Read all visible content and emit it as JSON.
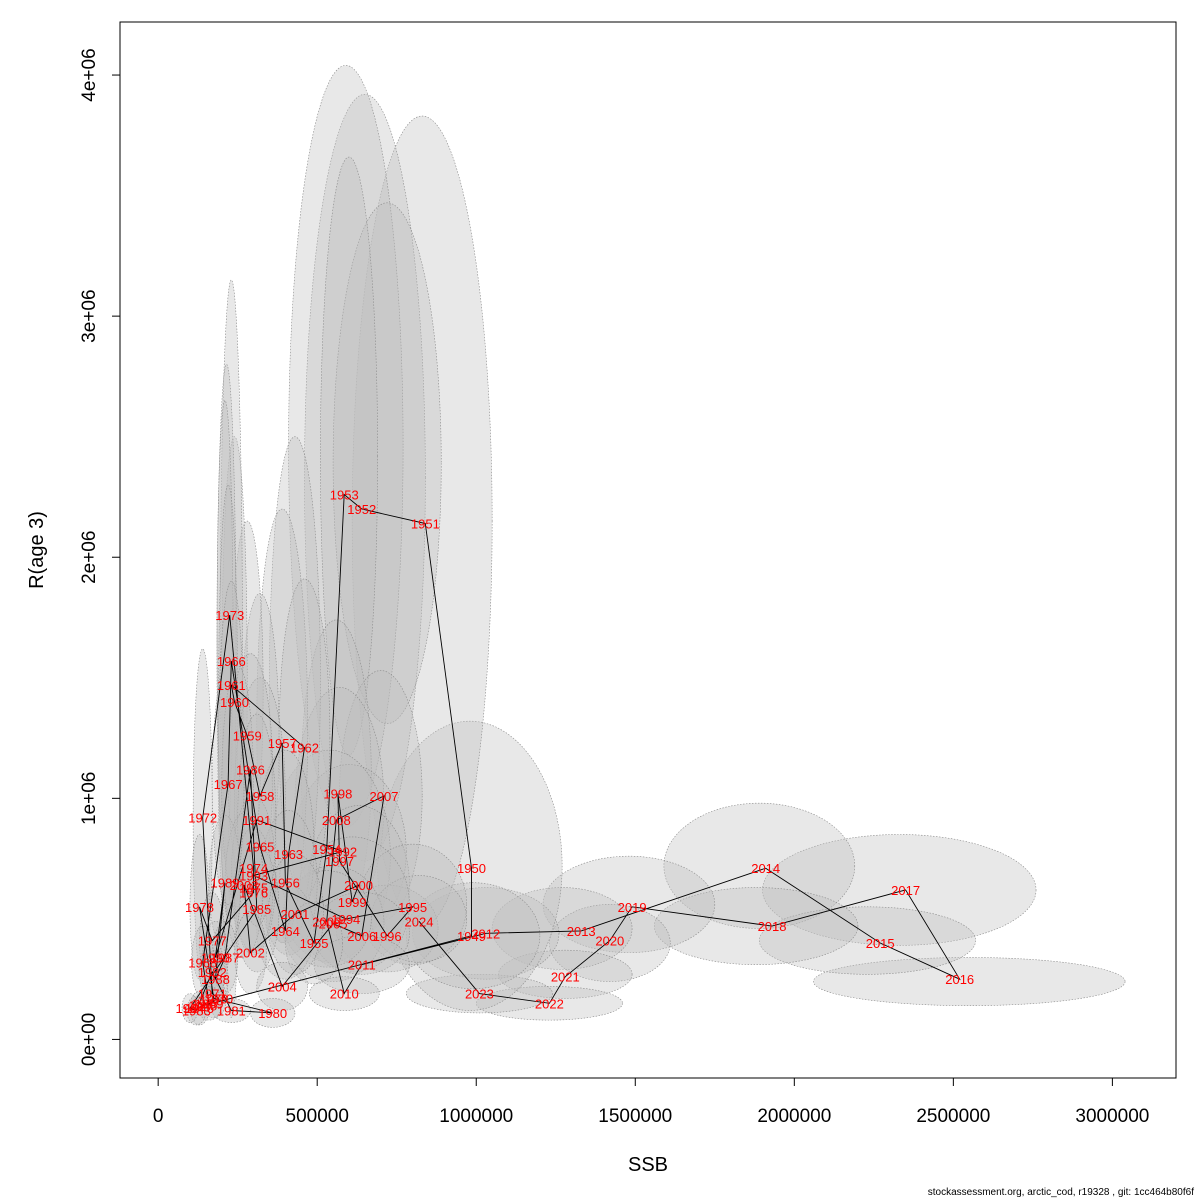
{
  "chart_data": {
    "type": "scatter",
    "xlabel": "SSB",
    "ylabel": "R(age 3)",
    "xlim": [
      -120000,
      3200000
    ],
    "ylim": [
      -160000,
      4220000
    ],
    "x_ticks": [
      0,
      500000,
      1000000,
      1500000,
      2000000,
      2500000,
      3000000
    ],
    "x_tick_labels": [
      "0",
      "500000",
      "1000000",
      "1500000",
      "2000000",
      "2500000",
      "3000000"
    ],
    "y_ticks": [
      0,
      1000000,
      2000000,
      3000000,
      4000000
    ],
    "y_tick_labels": [
      "0e+00",
      "1e+06",
      "2e+06",
      "3e+06",
      "4e+06"
    ],
    "grid": false,
    "point_color": "#ff0000",
    "ellipse_fill": "#bebebe",
    "line_color": "#000000",
    "points": [
      {
        "year": "1946",
        "ssb": 130000,
        "r": 130000
      },
      {
        "year": "1947",
        "ssb": 150000,
        "r": 150000
      },
      {
        "year": "1948",
        "ssb": 140000,
        "r": 140000
      },
      {
        "year": "1949",
        "ssb": 985000,
        "r": 430000
      },
      {
        "year": "1950",
        "ssb": 985000,
        "r": 710000
      },
      {
        "year": "1951",
        "ssb": 840000,
        "r": 2140000
      },
      {
        "year": "1952",
        "ssb": 640000,
        "r": 2200000
      },
      {
        "year": "1953",
        "ssb": 585000,
        "r": 2260000
      },
      {
        "year": "1954",
        "ssb": 530000,
        "r": 790000
      },
      {
        "year": "1955",
        "ssb": 490000,
        "r": 400000
      },
      {
        "year": "1956",
        "ssb": 400000,
        "r": 650000
      },
      {
        "year": "1957",
        "ssb": 390000,
        "r": 1230000
      },
      {
        "year": "1958",
        "ssb": 320000,
        "r": 1010000
      },
      {
        "year": "1959",
        "ssb": 280000,
        "r": 1260000
      },
      {
        "year": "1960",
        "ssb": 240000,
        "r": 1400000
      },
      {
        "year": "1961",
        "ssb": 230000,
        "r": 1470000
      },
      {
        "year": "1962",
        "ssb": 460000,
        "r": 1210000
      },
      {
        "year": "1963",
        "ssb": 410000,
        "r": 770000
      },
      {
        "year": "1964",
        "ssb": 400000,
        "r": 450000
      },
      {
        "year": "1965",
        "ssb": 320000,
        "r": 800000
      },
      {
        "year": "1966",
        "ssb": 230000,
        "r": 1570000
      },
      {
        "year": "1967",
        "ssb": 220000,
        "r": 1060000
      },
      {
        "year": "1968",
        "ssb": 140000,
        "r": 320000
      },
      {
        "year": "1969",
        "ssb": 160000,
        "r": 150000
      },
      {
        "year": "1970",
        "ssb": 190000,
        "r": 170000
      },
      {
        "year": "1971",
        "ssb": 170000,
        "r": 190000
      },
      {
        "year": "1972",
        "ssb": 140000,
        "r": 920000
      },
      {
        "year": "1973",
        "ssb": 225000,
        "r": 1760000
      },
      {
        "year": "1974",
        "ssb": 300000,
        "r": 710000
      },
      {
        "year": "1975",
        "ssb": 300000,
        "r": 630000
      },
      {
        "year": "1976",
        "ssb": 300000,
        "r": 610000
      },
      {
        "year": "1977",
        "ssb": 170000,
        "r": 410000
      },
      {
        "year": "1978",
        "ssb": 130000,
        "r": 550000
      },
      {
        "year": "1979",
        "ssb": 175000,
        "r": 170000
      },
      {
        "year": "1980",
        "ssb": 360000,
        "r": 110000
      },
      {
        "year": "1981",
        "ssb": 230000,
        "r": 120000
      },
      {
        "year": "1982",
        "ssb": 170000,
        "r": 280000
      },
      {
        "year": "1983",
        "ssb": 120000,
        "r": 120000
      },
      {
        "year": "1984",
        "ssb": 100000,
        "r": 130000
      },
      {
        "year": "1985",
        "ssb": 310000,
        "r": 540000
      },
      {
        "year": "1986",
        "ssb": 290000,
        "r": 1120000
      },
      {
        "year": "1987",
        "ssb": 210000,
        "r": 340000
      },
      {
        "year": "1988",
        "ssb": 180000,
        "r": 250000
      },
      {
        "year": "1989",
        "ssb": 210000,
        "r": 650000
      },
      {
        "year": "1990",
        "ssb": 180000,
        "r": 340000
      },
      {
        "year": "1991",
        "ssb": 310000,
        "r": 910000
      },
      {
        "year": "1992",
        "ssb": 580000,
        "r": 780000
      },
      {
        "year": "1993",
        "ssb": 300000,
        "r": 680000
      },
      {
        "year": "1994",
        "ssb": 590000,
        "r": 500000
      },
      {
        "year": "1995",
        "ssb": 800000,
        "r": 550000
      },
      {
        "year": "1996",
        "ssb": 720000,
        "r": 430000
      },
      {
        "year": "1997",
        "ssb": 570000,
        "r": 740000
      },
      {
        "year": "1998",
        "ssb": 565000,
        "r": 1020000
      },
      {
        "year": "1999",
        "ssb": 610000,
        "r": 570000
      },
      {
        "year": "2000",
        "ssb": 630000,
        "r": 640000
      },
      {
        "year": "2001",
        "ssb": 430000,
        "r": 520000
      },
      {
        "year": "2002",
        "ssb": 290000,
        "r": 360000
      },
      {
        "year": "2003",
        "ssb": 270000,
        "r": 640000
      },
      {
        "year": "2004",
        "ssb": 390000,
        "r": 220000
      },
      {
        "year": "2005",
        "ssb": 550000,
        "r": 480000
      },
      {
        "year": "2006",
        "ssb": 640000,
        "r": 430000
      },
      {
        "year": "2007",
        "ssb": 710000,
        "r": 1010000
      },
      {
        "year": "2008",
        "ssb": 560000,
        "r": 910000
      },
      {
        "year": "2009",
        "ssb": 530000,
        "r": 490000
      },
      {
        "year": "2010",
        "ssb": 585000,
        "r": 190000
      },
      {
        "year": "2011",
        "ssb": 640000,
        "r": 310000
      },
      {
        "year": "2012",
        "ssb": 1030000,
        "r": 440000
      },
      {
        "year": "2013",
        "ssb": 1330000,
        "r": 450000
      },
      {
        "year": "2014",
        "ssb": 1910000,
        "r": 710000
      },
      {
        "year": "2015",
        "ssb": 2270000,
        "r": 400000
      },
      {
        "year": "2016",
        "ssb": 2520000,
        "r": 250000
      },
      {
        "year": "2017",
        "ssb": 2350000,
        "r": 620000
      },
      {
        "year": "2018",
        "ssb": 1930000,
        "r": 470000
      },
      {
        "year": "2019",
        "ssb": 1490000,
        "r": 550000
      },
      {
        "year": "2020",
        "ssb": 1420000,
        "r": 410000
      },
      {
        "year": "2021",
        "ssb": 1280000,
        "r": 260000
      },
      {
        "year": "2022",
        "ssb": 1230000,
        "r": 150000
      },
      {
        "year": "2023",
        "ssb": 1010000,
        "r": 190000
      },
      {
        "year": "2024",
        "ssb": 820000,
        "r": 490000
      }
    ],
    "ellipses": [
      {
        "cx": 2550000,
        "cy": 240000,
        "rx": 490000,
        "ry": 100000
      },
      {
        "cx": 2330000,
        "cy": 620000,
        "rx": 430000,
        "ry": 230000
      },
      {
        "cx": 1890000,
        "cy": 720000,
        "rx": 300000,
        "ry": 260000
      },
      {
        "cx": 2230000,
        "cy": 410000,
        "rx": 340000,
        "ry": 140000
      },
      {
        "cx": 1880000,
        "cy": 470000,
        "rx": 320000,
        "ry": 160000
      },
      {
        "cx": 1480000,
        "cy": 560000,
        "rx": 270000,
        "ry": 200000
      },
      {
        "cx": 1420000,
        "cy": 400000,
        "rx": 190000,
        "ry": 160000
      },
      {
        "cx": 1270000,
        "cy": 460000,
        "rx": 220000,
        "ry": 170000
      },
      {
        "cx": 1280000,
        "cy": 270000,
        "rx": 210000,
        "ry": 100000
      },
      {
        "cx": 1230000,
        "cy": 150000,
        "rx": 230000,
        "ry": 70000
      },
      {
        "cx": 1010000,
        "cy": 190000,
        "rx": 230000,
        "ry": 80000
      },
      {
        "cx": 1030000,
        "cy": 440000,
        "rx": 230000,
        "ry": 190000
      },
      {
        "cx": 980000,
        "cy": 720000,
        "rx": 290000,
        "ry": 600000
      },
      {
        "cx": 990000,
        "cy": 430000,
        "rx": 210000,
        "ry": 220000
      },
      {
        "cx": 830000,
        "cy": 2150000,
        "rx": 220000,
        "ry": 1680000
      },
      {
        "cx": 650000,
        "cy": 2330000,
        "rx": 190000,
        "ry": 1590000
      },
      {
        "cx": 590000,
        "cy": 2460000,
        "rx": 180000,
        "ry": 1580000
      },
      {
        "cx": 720000,
        "cy": 2390000,
        "rx": 170000,
        "ry": 1080000
      },
      {
        "cx": 600000,
        "cy": 2420000,
        "rx": 90000,
        "ry": 1240000
      },
      {
        "cx": 700000,
        "cy": 1010000,
        "rx": 130000,
        "ry": 520000
      },
      {
        "cx": 560000,
        "cy": 1100000,
        "rx": 110000,
        "ry": 640000
      },
      {
        "cx": 570000,
        "cy": 980000,
        "rx": 140000,
        "ry": 480000
      },
      {
        "cx": 600000,
        "cy": 780000,
        "rx": 180000,
        "ry": 360000
      },
      {
        "cx": 540000,
        "cy": 760000,
        "rx": 190000,
        "ry": 440000
      },
      {
        "cx": 630000,
        "cy": 640000,
        "rx": 160000,
        "ry": 330000
      },
      {
        "cx": 720000,
        "cy": 460000,
        "rx": 160000,
        "ry": 180000
      },
      {
        "cx": 800000,
        "cy": 560000,
        "rx": 170000,
        "ry": 250000
      },
      {
        "cx": 820000,
        "cy": 500000,
        "rx": 150000,
        "ry": 180000
      },
      {
        "cx": 610000,
        "cy": 560000,
        "rx": 180000,
        "ry": 280000
      },
      {
        "cx": 550000,
        "cy": 480000,
        "rx": 160000,
        "ry": 240000
      },
      {
        "cx": 640000,
        "cy": 440000,
        "rx": 150000,
        "ry": 170000
      },
      {
        "cx": 530000,
        "cy": 500000,
        "rx": 140000,
        "ry": 200000
      },
      {
        "cx": 640000,
        "cy": 310000,
        "rx": 150000,
        "ry": 120000
      },
      {
        "cx": 585000,
        "cy": 190000,
        "rx": 110000,
        "ry": 70000
      },
      {
        "cx": 430000,
        "cy": 1500000,
        "rx": 80000,
        "ry": 1000000
      },
      {
        "cx": 390000,
        "cy": 1300000,
        "rx": 80000,
        "ry": 900000
      },
      {
        "cx": 460000,
        "cy": 1250000,
        "rx": 80000,
        "ry": 660000
      },
      {
        "cx": 320000,
        "cy": 1250000,
        "rx": 60000,
        "ry": 600000
      },
      {
        "cx": 280000,
        "cy": 1450000,
        "rx": 50000,
        "ry": 700000
      },
      {
        "cx": 240000,
        "cy": 1500000,
        "rx": 40000,
        "ry": 1000000
      },
      {
        "cx": 230000,
        "cy": 1620000,
        "rx": 35000,
        "ry": 1530000
      },
      {
        "cx": 215000,
        "cy": 1600000,
        "rx": 30000,
        "ry": 1200000
      },
      {
        "cx": 210000,
        "cy": 1700000,
        "rx": 25000,
        "ry": 950000
      },
      {
        "cx": 220000,
        "cy": 1400000,
        "rx": 30000,
        "ry": 900000
      },
      {
        "cx": 230000,
        "cy": 1200000,
        "rx": 40000,
        "ry": 700000
      },
      {
        "cx": 320000,
        "cy": 1000000,
        "rx": 80000,
        "ry": 500000
      },
      {
        "cx": 290000,
        "cy": 1100000,
        "rx": 70000,
        "ry": 500000
      },
      {
        "cx": 250000,
        "cy": 1050000,
        "rx": 50000,
        "ry": 500000
      },
      {
        "cx": 400000,
        "cy": 800000,
        "rx": 90000,
        "ry": 400000
      },
      {
        "cx": 410000,
        "cy": 650000,
        "rx": 90000,
        "ry": 300000
      },
      {
        "cx": 400000,
        "cy": 450000,
        "rx": 90000,
        "ry": 200000
      },
      {
        "cx": 490000,
        "cy": 400000,
        "rx": 90000,
        "ry": 170000
      },
      {
        "cx": 430000,
        "cy": 520000,
        "rx": 90000,
        "ry": 250000
      },
      {
        "cx": 300000,
        "cy": 680000,
        "rx": 70000,
        "ry": 330000
      },
      {
        "cx": 300000,
        "cy": 620000,
        "rx": 60000,
        "ry": 260000
      },
      {
        "cx": 310000,
        "cy": 540000,
        "rx": 70000,
        "ry": 260000
      },
      {
        "cx": 310000,
        "cy": 910000,
        "rx": 60000,
        "ry": 440000
      },
      {
        "cx": 270000,
        "cy": 640000,
        "rx": 60000,
        "ry": 300000
      },
      {
        "cx": 290000,
        "cy": 360000,
        "rx": 50000,
        "ry": 170000
      },
      {
        "cx": 390000,
        "cy": 220000,
        "rx": 80000,
        "ry": 100000
      },
      {
        "cx": 360000,
        "cy": 110000,
        "rx": 70000,
        "ry": 60000
      },
      {
        "cx": 230000,
        "cy": 120000,
        "rx": 60000,
        "ry": 50000
      },
      {
        "cx": 210000,
        "cy": 650000,
        "rx": 50000,
        "ry": 280000
      },
      {
        "cx": 220000,
        "cy": 1060000,
        "rx": 50000,
        "ry": 500000
      },
      {
        "cx": 140000,
        "cy": 920000,
        "rx": 30000,
        "ry": 700000
      },
      {
        "cx": 130000,
        "cy": 550000,
        "rx": 30000,
        "ry": 300000
      },
      {
        "cx": 170000,
        "cy": 410000,
        "rx": 40000,
        "ry": 200000
      },
      {
        "cx": 210000,
        "cy": 340000,
        "rx": 40000,
        "ry": 150000
      },
      {
        "cx": 180000,
        "cy": 340000,
        "rx": 40000,
        "ry": 150000
      },
      {
        "cx": 170000,
        "cy": 280000,
        "rx": 40000,
        "ry": 130000
      },
      {
        "cx": 180000,
        "cy": 250000,
        "rx": 40000,
        "ry": 120000
      },
      {
        "cx": 140000,
        "cy": 320000,
        "rx": 35000,
        "ry": 150000
      },
      {
        "cx": 175000,
        "cy": 170000,
        "rx": 40000,
        "ry": 80000
      },
      {
        "cx": 160000,
        "cy": 150000,
        "rx": 40000,
        "ry": 70000
      },
      {
        "cx": 130000,
        "cy": 130000,
        "rx": 30000,
        "ry": 70000
      },
      {
        "cx": 120000,
        "cy": 120000,
        "rx": 30000,
        "ry": 60000
      },
      {
        "cx": 100000,
        "cy": 130000,
        "rx": 25000,
        "ry": 60000
      }
    ]
  },
  "footer_text": "stockassessment.org, arctic_cod, r19328 , git: 1cc464b80f6f"
}
